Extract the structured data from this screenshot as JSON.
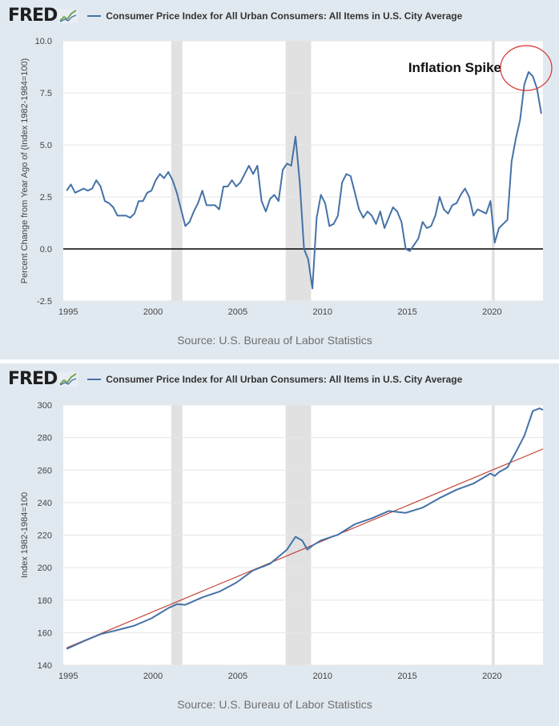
{
  "chart_data": [
    {
      "type": "line",
      "logo": "FRED",
      "title": "Consumer Price Index for All Urban Consumers: All Items in U.S. City Average",
      "ylabel": "Percent Change from Year Ago of (Index 1982-1984=100)",
      "xlabel": "",
      "source": "Source: U.S. Bureau of Labor Statistics",
      "annotation": "Inflation Spike",
      "annotation_marker": "red circle around the 2022 peak",
      "x_ticks": [
        "1995",
        "2000",
        "2005",
        "2010",
        "2015",
        "2020"
      ],
      "y_ticks": [
        "-2.5",
        "0.0",
        "2.5",
        "5.0",
        "7.5",
        "10.0"
      ],
      "xlim": [
        1994.8,
        2023.1
      ],
      "ylim": [
        -2.5,
        10.0
      ],
      "grid": "horizontal",
      "zero_line": true,
      "recessions": [
        [
          2001.17,
          2001.83
        ],
        [
          2007.92,
          2009.42
        ],
        [
          2020.08,
          2020.25
        ]
      ],
      "series": [
        {
          "color": "#4572a7",
          "x": [
            1995.0,
            1995.25,
            1995.5,
            1995.75,
            1996.0,
            1996.25,
            1996.5,
            1996.75,
            1997.0,
            1997.25,
            1997.5,
            1997.75,
            1998.0,
            1998.25,
            1998.5,
            1998.75,
            1999.0,
            1999.25,
            1999.5,
            1999.75,
            2000.0,
            2000.25,
            2000.5,
            2000.75,
            2001.0,
            2001.25,
            2001.5,
            2001.75,
            2002.0,
            2002.25,
            2002.5,
            2002.75,
            2003.0,
            2003.25,
            2003.5,
            2003.75,
            2004.0,
            2004.25,
            2004.5,
            2004.75,
            2005.0,
            2005.25,
            2005.5,
            2005.75,
            2006.0,
            2006.25,
            2006.5,
            2006.75,
            2007.0,
            2007.25,
            2007.5,
            2007.75,
            2008.0,
            2008.25,
            2008.5,
            2008.75,
            2009.0,
            2009.25,
            2009.5,
            2009.75,
            2010.0,
            2010.25,
            2010.5,
            2010.75,
            2011.0,
            2011.25,
            2011.5,
            2011.75,
            2012.0,
            2012.25,
            2012.5,
            2012.75,
            2013.0,
            2013.25,
            2013.5,
            2013.75,
            2014.0,
            2014.25,
            2014.5,
            2014.75,
            2015.0,
            2015.25,
            2015.5,
            2015.75,
            2016.0,
            2016.25,
            2016.5,
            2016.75,
            2017.0,
            2017.25,
            2017.5,
            2017.75,
            2018.0,
            2018.25,
            2018.5,
            2018.75,
            2019.0,
            2019.25,
            2019.5,
            2019.75,
            2020.0,
            2020.25,
            2020.5,
            2020.75,
            2021.0,
            2021.25,
            2021.5,
            2021.75,
            2022.0,
            2022.25,
            2022.5,
            2022.75,
            2023.0
          ],
          "y": [
            2.8,
            3.1,
            2.7,
            2.8,
            2.9,
            2.8,
            2.9,
            3.3,
            3.0,
            2.3,
            2.2,
            2.0,
            1.6,
            1.6,
            1.6,
            1.5,
            1.7,
            2.3,
            2.3,
            2.7,
            2.8,
            3.3,
            3.6,
            3.4,
            3.7,
            3.3,
            2.7,
            1.9,
            1.1,
            1.3,
            1.8,
            2.2,
            2.8,
            2.1,
            2.1,
            2.1,
            1.9,
            3.0,
            3.0,
            3.3,
            3.0,
            3.2,
            3.6,
            4.0,
            3.6,
            4.0,
            2.3,
            1.8,
            2.4,
            2.6,
            2.3,
            3.8,
            4.1,
            4.0,
            5.4,
            3.2,
            0.0,
            -0.5,
            -1.9,
            1.5,
            2.6,
            2.2,
            1.1,
            1.2,
            1.6,
            3.2,
            3.6,
            3.5,
            2.7,
            1.9,
            1.5,
            1.8,
            1.6,
            1.2,
            1.8,
            1.0,
            1.5,
            2.0,
            1.8,
            1.3,
            0.0,
            -0.1,
            0.2,
            0.5,
            1.3,
            1.0,
            1.1,
            1.6,
            2.5,
            1.9,
            1.7,
            2.1,
            2.2,
            2.6,
            2.9,
            2.5,
            1.6,
            1.9,
            1.8,
            1.7,
            2.3,
            0.3,
            1.0,
            1.2,
            1.4,
            4.2,
            5.3,
            6.2,
            7.9,
            8.5,
            8.3,
            7.7,
            6.5
          ]
        }
      ]
    },
    {
      "type": "line",
      "logo": "FRED",
      "title": "Consumer Price Index for All Urban Consumers: All Items in U.S. City Average",
      "ylabel": "Index 1982-1984=100",
      "xlabel": "",
      "source": "Source: U.S. Bureau of Labor Statistics",
      "x_ticks": [
        "1995",
        "2000",
        "2005",
        "2010",
        "2015",
        "2020"
      ],
      "y_ticks": [
        "140",
        "160",
        "180",
        "200",
        "220",
        "240",
        "260",
        "280",
        "300"
      ],
      "xlim": [
        1994.8,
        2023.1
      ],
      "ylim": [
        140,
        300
      ],
      "grid": "horizontal",
      "recessions": [
        [
          2001.17,
          2001.83
        ],
        [
          2007.92,
          2009.42
        ],
        [
          2020.08,
          2020.25
        ]
      ],
      "trendline": {
        "color": "#c0392b",
        "x": [
          1995.0,
          2023.1
        ],
        "y": [
          150.7,
          273.0
        ]
      },
      "series": [
        {
          "color": "#4572a7",
          "x": [
            1995.0,
            1996.0,
            1997.0,
            1998.0,
            1999.0,
            2000.0,
            2001.0,
            2001.5,
            2002.0,
            2003.0,
            2004.0,
            2005.0,
            2006.0,
            2007.0,
            2008.0,
            2008.5,
            2008.9,
            2009.2,
            2009.5,
            2010.0,
            2011.0,
            2012.0,
            2013.0,
            2014.0,
            2015.0,
            2016.0,
            2017.0,
            2018.0,
            2019.0,
            2020.0,
            2020.25,
            2020.5,
            2021.0,
            2021.5,
            2022.0,
            2022.5,
            2022.9,
            2023.1
          ],
          "y": [
            150.0,
            154.7,
            159.1,
            161.6,
            164.3,
            168.8,
            175.1,
            177.5,
            177.1,
            181.7,
            185.2,
            190.7,
            198.3,
            202.4,
            211.1,
            219.0,
            216.6,
            211.1,
            213.5,
            216.7,
            220.2,
            226.7,
            230.3,
            234.8,
            233.7,
            236.9,
            242.8,
            247.9,
            251.7,
            257.9,
            256.4,
            258.7,
            261.6,
            271.0,
            281.1,
            296.3,
            298.0,
            297.0
          ]
        }
      ]
    }
  ]
}
